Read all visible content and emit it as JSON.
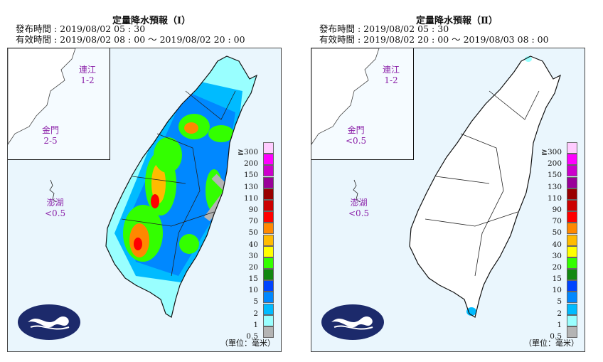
{
  "panels": [
    {
      "title": "定量降水預報（Ⅰ）",
      "issued": "發布時間 : 2019/08/02 05 : 30",
      "valid": "有效時間 : 2019/08/02 08 : 00 ～ 2019/08/02 20 : 00",
      "matsu": {
        "name": "連江",
        "value": "1-2"
      },
      "kinmen": {
        "name": "金門",
        "value": "2-5"
      },
      "penghu": {
        "name": "澎湖",
        "value": "<0.5"
      }
    },
    {
      "title": "定量降水預報（Ⅱ）",
      "issued": "發布時間 : 2019/08/02 05 : 30",
      "valid": "有效時間 : 2019/08/02 20 : 00 ～ 2019/08/03 08 : 00",
      "matsu": {
        "name": "連江",
        "value": "1-2"
      },
      "kinmen": {
        "name": "金門",
        "value": "<0.5"
      },
      "penghu": {
        "name": "澎湖",
        "value": "<0.5"
      }
    }
  ],
  "legend": {
    "labels": [
      "≧300",
      "200",
      "150",
      "130",
      "110",
      "90",
      "70",
      "50",
      "40",
      "30",
      "20",
      "15",
      "10",
      "5",
      "2",
      "1",
      "0.5"
    ],
    "colors": [
      "#ffccff",
      "#ff00ff",
      "#cc00cc",
      "#990099",
      "#990000",
      "#cc0000",
      "#ff0000",
      "#ff8800",
      "#ffbb00",
      "#ffff00",
      "#33ff00",
      "#118811",
      "#0044ff",
      "#0088ff",
      "#00bbff",
      "#99ffff",
      "#b4b4b4"
    ],
    "unit": "（單位：毫米）"
  },
  "map": {
    "sea_color": "#eaf6fd",
    "land_color": "#ffffff"
  }
}
